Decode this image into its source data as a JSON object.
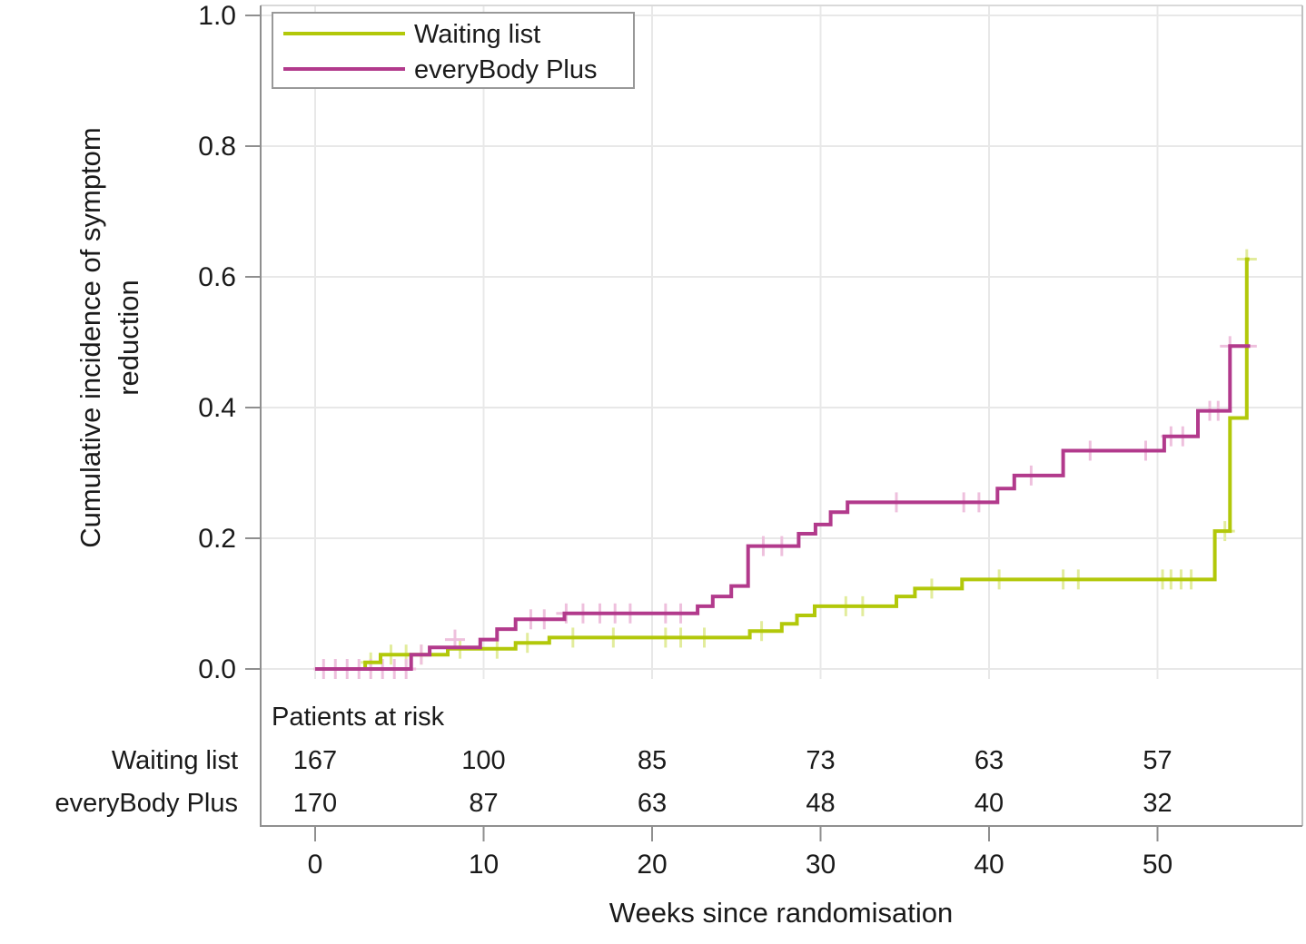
{
  "chart_data": {
    "type": "line",
    "subtype": "kaplan-meier-step",
    "title": "",
    "xlabel": "Weeks since randomisation",
    "ylabel": "Cumulative incidence of symptom reduction",
    "ylabel_lines": [
      "Cumulative incidence of symptom",
      "reduction"
    ],
    "xticks": [
      0,
      10,
      20,
      30,
      40,
      50
    ],
    "yticks": [
      "0.0",
      "0.2",
      "0.4",
      "0.6",
      "0.8",
      "1.0"
    ],
    "xlim": [
      -3.2,
      58.6
    ],
    "ylim": [
      0.0,
      1.0
    ],
    "grid": true,
    "legend_position": "top-left",
    "series": [
      {
        "name": "Waiting list",
        "color": "#b2c80a",
        "censor_color": "#e2ec9c",
        "steps": [
          [
            0,
            0
          ],
          [
            2.97,
            0.01
          ],
          [
            3.88,
            0.022
          ],
          [
            7.87,
            0.031
          ],
          [
            11.9,
            0.04
          ],
          [
            13.9,
            0.048
          ],
          [
            25.8,
            0.058
          ],
          [
            27.7,
            0.069
          ],
          [
            28.6,
            0.082
          ],
          [
            29.65,
            0.096
          ],
          [
            34.5,
            0.111
          ],
          [
            35.6,
            0.123
          ],
          [
            38.4,
            0.137
          ],
          [
            53.4,
            0.211
          ],
          [
            54.3,
            0.384
          ],
          [
            55.3,
            0.627
          ]
        ],
        "end_week": 55.45,
        "censors": [
          [
            3.3,
            0.01
          ],
          [
            4.5,
            0.022
          ],
          [
            5.4,
            0.022
          ],
          [
            6.3,
            0.022
          ],
          [
            8.6,
            0.031
          ],
          [
            10.8,
            0.031
          ],
          [
            12.6,
            0.04
          ],
          [
            15.3,
            0.048
          ],
          [
            17.7,
            0.048
          ],
          [
            20.8,
            0.048
          ],
          [
            21.7,
            0.048
          ],
          [
            23.1,
            0.048
          ],
          [
            26.5,
            0.058
          ],
          [
            31.5,
            0.096
          ],
          [
            32.5,
            0.096
          ],
          [
            36.6,
            0.123
          ],
          [
            40.6,
            0.137
          ],
          [
            44.4,
            0.137
          ],
          [
            45.3,
            0.137
          ],
          [
            50.3,
            0.137
          ],
          [
            50.8,
            0.137
          ],
          [
            51.4,
            0.137
          ],
          [
            52.0,
            0.137
          ],
          [
            54.0,
            0.211
          ],
          [
            55.3,
            0.627
          ]
        ]
      },
      {
        "name": "everyBody Plus",
        "color": "#b23a8c",
        "censor_color": "#eec0dd",
        "steps": [
          [
            0,
            0
          ],
          [
            5.7,
            0.022
          ],
          [
            6.8,
            0.033
          ],
          [
            9.8,
            0.045
          ],
          [
            10.8,
            0.061
          ],
          [
            11.9,
            0.076
          ],
          [
            14.8,
            0.085
          ],
          [
            22.7,
            0.096
          ],
          [
            23.6,
            0.111
          ],
          [
            24.7,
            0.127
          ],
          [
            25.7,
            0.188
          ],
          [
            28.7,
            0.207
          ],
          [
            29.7,
            0.221
          ],
          [
            30.6,
            0.24
          ],
          [
            31.6,
            0.255
          ],
          [
            40.5,
            0.276
          ],
          [
            41.5,
            0.296
          ],
          [
            44.4,
            0.334
          ],
          [
            50.4,
            0.356
          ],
          [
            52.4,
            0.395
          ],
          [
            54.3,
            0.494
          ]
        ],
        "end_week": 55.5,
        "censors": [
          [
            0.5,
            0
          ],
          [
            1.2,
            0
          ],
          [
            1.9,
            0
          ],
          [
            2.6,
            0
          ],
          [
            3.3,
            0
          ],
          [
            4.0,
            0
          ],
          [
            4.7,
            0
          ],
          [
            5.4,
            0
          ],
          [
            6.3,
            0.022
          ],
          [
            8.3,
            0.045
          ],
          [
            12.8,
            0.076
          ],
          [
            13.6,
            0.076
          ],
          [
            14.9,
            0.085
          ],
          [
            15.9,
            0.085
          ],
          [
            16.9,
            0.085
          ],
          [
            17.8,
            0.085
          ],
          [
            18.7,
            0.085
          ],
          [
            20.8,
            0.085
          ],
          [
            21.7,
            0.085
          ],
          [
            26.6,
            0.188
          ],
          [
            27.7,
            0.188
          ],
          [
            34.5,
            0.255
          ],
          [
            38.5,
            0.255
          ],
          [
            39.4,
            0.255
          ],
          [
            42.5,
            0.296
          ],
          [
            46.0,
            0.334
          ],
          [
            49.3,
            0.334
          ],
          [
            50.8,
            0.356
          ],
          [
            51.5,
            0.356
          ],
          [
            53.1,
            0.395
          ],
          [
            53.6,
            0.395
          ],
          [
            54.3,
            0.494
          ],
          [
            55.3,
            0.494
          ]
        ]
      }
    ],
    "risk_table": {
      "title": "Patients at risk",
      "times": [
        0,
        10,
        20,
        30,
        40,
        50
      ],
      "rows": [
        {
          "label": "Waiting list",
          "counts": [
            167,
            100,
            85,
            73,
            63,
            57
          ]
        },
        {
          "label": "everyBody Plus",
          "counts": [
            170,
            87,
            63,
            48,
            40,
            32
          ]
        }
      ]
    },
    "colors": {
      "grid": "#e8e8e8",
      "frame": "#8f8f8f",
      "frame_light": "#d9d9d9",
      "tick": "#8f8f8f",
      "legend_border": "#999999"
    }
  }
}
